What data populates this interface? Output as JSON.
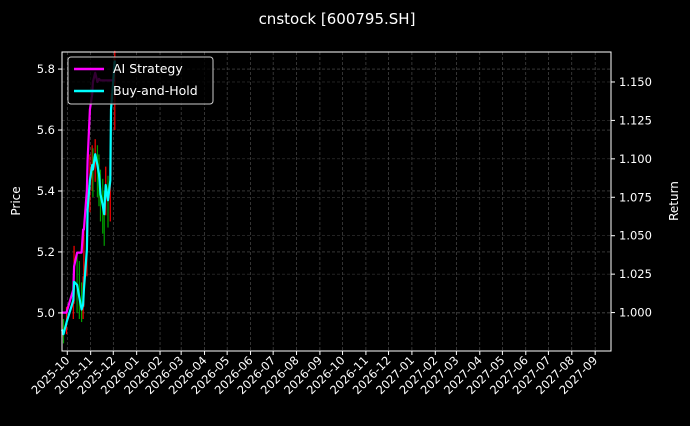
{
  "chart_data": {
    "type": "line",
    "title": "cnstock [600795.SH]",
    "ylabel": "Price",
    "y2label": "Return",
    "xlim": [
      "2025-09-24",
      "2027-09-22"
    ],
    "ylim": [
      4.875,
      5.856
    ],
    "y2lim": [
      0.975,
      1.1695
    ],
    "grid": true,
    "legend_position": "top-left",
    "x_ticks": [
      "2025-10",
      "2025-11",
      "2025-12",
      "2026-01",
      "2026-02",
      "2026-03",
      "2026-04",
      "2026-05",
      "2026-06",
      "2026-07",
      "2026-08",
      "2026-09",
      "2026-10",
      "2026-11",
      "2026-12",
      "2027-01",
      "2027-02",
      "2027-03",
      "2027-04",
      "2027-05",
      "2027-06",
      "2027-07",
      "2027-08",
      "2027-09"
    ],
    "y_ticks": [
      "5.0",
      "5.2",
      "5.4",
      "5.6",
      "5.8"
    ],
    "y2_ticks": [
      "1.000",
      "1.025",
      "1.050",
      "1.075",
      "1.100",
      "1.125",
      "1.150"
    ],
    "dates": [
      "2025-09-24",
      "2025-09-26",
      "2025-09-30",
      "2025-10-09",
      "2025-10-10",
      "2025-10-14",
      "2025-10-17",
      "2025-10-20",
      "2025-10-22",
      "2025-10-23",
      "2025-10-27",
      "2025-10-28",
      "2025-10-31",
      "2025-11-03",
      "2025-11-04",
      "2025-11-07",
      "2025-11-10",
      "2025-11-12",
      "2025-11-14",
      "2025-11-17",
      "2025-11-19",
      "2025-11-21",
      "2025-11-24",
      "2025-11-27",
      "2025-11-28",
      "2025-12-03"
    ],
    "price": {
      "close": [
        4.95,
        4.93,
        4.97,
        5.04,
        5.1,
        5.09,
        5.05,
        5.01,
        5.03,
        5.08,
        5.21,
        5.34,
        5.43,
        5.48,
        5.47,
        5.52,
        5.48,
        5.45,
        5.39,
        5.35,
        5.32,
        5.42,
        5.37,
        5.43,
        5.66,
        5.82
      ],
      "high": [
        5.0,
        4.98,
        5.02,
        5.1,
        5.22,
        5.2,
        5.17,
        5.1,
        5.12,
        5.27,
        5.3,
        5.42,
        5.52,
        5.55,
        5.54,
        5.57,
        5.55,
        5.52,
        5.47,
        5.44,
        5.4,
        5.48,
        5.45,
        5.5,
        5.72,
        5.86
      ],
      "low": [
        4.92,
        4.9,
        4.93,
        4.98,
        5.03,
        5.0,
        4.98,
        4.97,
        4.98,
        5.02,
        5.12,
        5.25,
        5.33,
        5.4,
        5.38,
        5.43,
        5.38,
        5.35,
        5.3,
        5.26,
        5.22,
        5.32,
        5.28,
        5.3,
        5.45,
        5.6
      ],
      "up_color": "#ff0000",
      "down_color": "#00a000"
    },
    "series": [
      {
        "name": "AI Strategy",
        "color": "#ff00ff",
        "axis": "right",
        "values": [
          1.0,
          1.0,
          1.0,
          1.015,
          1.03,
          1.039,
          1.039,
          1.039,
          1.054,
          1.054,
          1.08,
          1.099,
          1.132,
          1.142,
          1.15,
          1.156,
          1.15,
          1.152,
          1.151,
          1.151,
          1.151,
          1.151,
          1.151,
          1.151,
          1.151,
          1.151
        ]
      },
      {
        "name": "Buy-and-Hold",
        "color": "#00ffff",
        "axis": "right",
        "values": [
          0.989,
          0.986,
          0.9935,
          1.008,
          1.02,
          1.018,
          1.01,
          1.002,
          1.005,
          1.015,
          1.041,
          1.067,
          1.086,
          1.096,
          1.093,
          1.103,
          1.096,
          1.09,
          1.077,
          1.07,
          1.064,
          1.083,
          1.073,
          1.086,
          1.132,
          1.164
        ]
      }
    ]
  }
}
